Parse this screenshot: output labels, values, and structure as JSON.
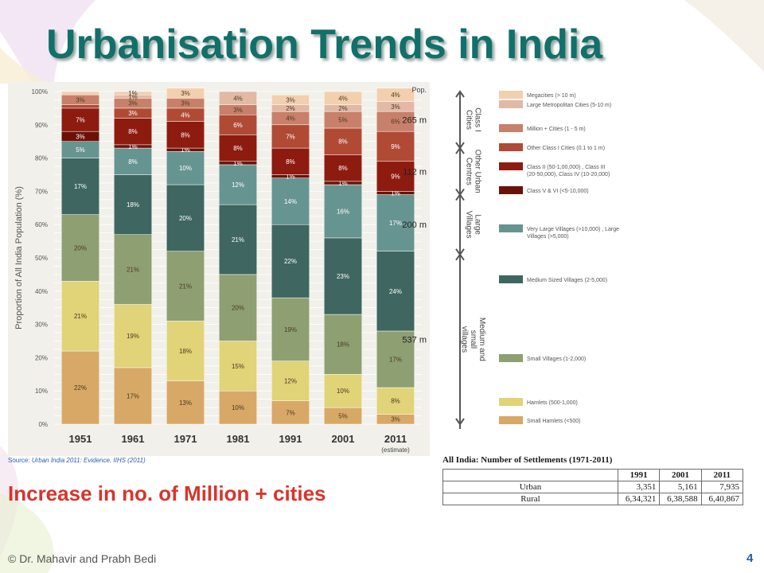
{
  "slide": {
    "title": "Urbanisation Trends in India",
    "subtitle": "Increase in no. of Million + cities",
    "source_label": "Source:",
    "source_text": "Urban India 2011: Evidence, IIHS (2011)",
    "credit": "© Dr. Mahavir and Prabh Bedi",
    "page_number": "4",
    "title_color": "#12706a",
    "subtitle_color": "#d9342b"
  },
  "chart_data": {
    "type": "bar",
    "stacked": true,
    "ylabel": "Proportion of All India Population (%)",
    "ylim": [
      0,
      100
    ],
    "yticks": [
      "0%",
      "10%",
      "20%",
      "30%",
      "40%",
      "50%",
      "60%",
      "70%",
      "80%",
      "90%",
      "100%"
    ],
    "categories": [
      "1951",
      "1961",
      "1971",
      "1981",
      "1991",
      "2001",
      "2011"
    ],
    "category_notes": [
      "",
      "",
      "",
      "",
      "",
      "",
      "(estimate)"
    ],
    "pop_header": "Pop.",
    "series": [
      {
        "name": "Small Hamlets (<500)",
        "color": "#d8a866",
        "values": [
          22,
          17,
          13,
          10,
          7,
          5,
          3
        ],
        "labels": [
          "22%",
          "17%",
          "13%",
          "10%",
          "7%",
          "5%",
          "3%"
        ]
      },
      {
        "name": "Hamlets (500-1,000)",
        "color": "#e0d378",
        "values": [
          21,
          19,
          18,
          15,
          12,
          10,
          8
        ],
        "labels": [
          "21%",
          "19%",
          "18%",
          "15%",
          "12%",
          "10%",
          "8%"
        ]
      },
      {
        "name": "Small Villages (1-2,000)",
        "color": "#8e9f72",
        "values": [
          20,
          21,
          21,
          20,
          19,
          18,
          17
        ],
        "labels": [
          "20%",
          "21%",
          "21%",
          "20%",
          "19%",
          "18%",
          "17%"
        ]
      },
      {
        "name": "Medium Sized Villages (2-5,000)",
        "color": "#3f6660",
        "values": [
          17,
          18,
          20,
          21,
          22,
          23,
          24
        ],
        "labels": [
          "17%",
          "18%",
          "20%",
          "21%",
          "22%",
          "23%",
          "24%"
        ]
      },
      {
        "name": "Very Large Villages (>10,000) , Large Villages (>5,000)",
        "color": "#669491",
        "values": [
          5,
          8,
          10,
          12,
          14,
          16,
          17
        ],
        "labels": [
          "5%",
          "8%",
          "10%",
          "12%",
          "14%",
          "16%",
          "17%"
        ]
      },
      {
        "name": "Class V & VI  (<5-10,000)",
        "color": "#6b1208",
        "values": [
          3,
          1,
          1,
          1,
          1,
          1,
          1
        ],
        "labels": [
          "3%",
          "1%",
          "1%",
          "1%",
          "1%",
          "1%",
          "1%"
        ]
      },
      {
        "name": "Class II (50-1,00,000) , Class III (20-50,000), Class IV (10-20,000)",
        "color": "#8e1b10",
        "values": [
          7,
          8,
          8,
          8,
          8,
          8,
          9
        ],
        "labels": [
          "7%",
          "8%",
          "8%",
          "8%",
          "8%",
          "8%",
          "9%"
        ]
      },
      {
        "name": "Other Class I Cities (0.1 to 1 m)",
        "color": "#b04a35",
        "values": [
          1,
          3,
          4,
          6,
          7,
          8,
          9
        ],
        "labels": [
          "",
          "3%",
          "4%",
          "6%",
          "7%",
          "8%",
          "9%"
        ]
      },
      {
        "name": "Million + Cities (1 - 5 m)",
        "color": "#c8806a",
        "values": [
          3,
          3,
          3,
          3,
          4,
          5,
          6
        ],
        "labels": [
          "3%",
          "3%",
          "3%",
          "3%",
          "4%",
          "5%",
          "6%"
        ]
      },
      {
        "name": "Large Metropolitan Cities (5-10 m)",
        "color": "#e2b9a5",
        "values": [
          0,
          1,
          0,
          4,
          2,
          2,
          3
        ],
        "labels": [
          "",
          "1%",
          "",
          "4%",
          "2%",
          "2%",
          "3%"
        ]
      },
      {
        "name": "Megacities (> 10 m)",
        "color": "#f3cfae",
        "values": [
          1,
          1,
          3,
          0,
          3,
          4,
          4
        ],
        "labels": [
          "",
          "1%",
          "3%",
          "",
          "3%",
          "4%",
          "4%"
        ]
      }
    ],
    "groups": [
      {
        "name": "Class I Cities",
        "pop": "265 m",
        "from": 83,
        "to": 100
      },
      {
        "name": "Other Urban Centres",
        "pop": "112 m",
        "from": 69,
        "to": 83
      },
      {
        "name": "Large Villages",
        "pop": "200 m",
        "from": 51,
        "to": 69
      },
      {
        "name": "Medium and small villages",
        "pop": "537 m",
        "from": 0,
        "to": 51
      }
    ]
  },
  "settlements": {
    "title": "All India: Number of Settlements (1971-2011)",
    "headers": [
      "",
      "1991",
      "2001",
      "2011"
    ],
    "rows": [
      {
        "label": "Urban",
        "v1991": "3,351",
        "v2001": "5,161",
        "v2011": "7,935"
      },
      {
        "label": "Rural",
        "v1991": "6,34,321",
        "v2001": "6,38,588",
        "v2011": "6,40,867"
      }
    ]
  }
}
